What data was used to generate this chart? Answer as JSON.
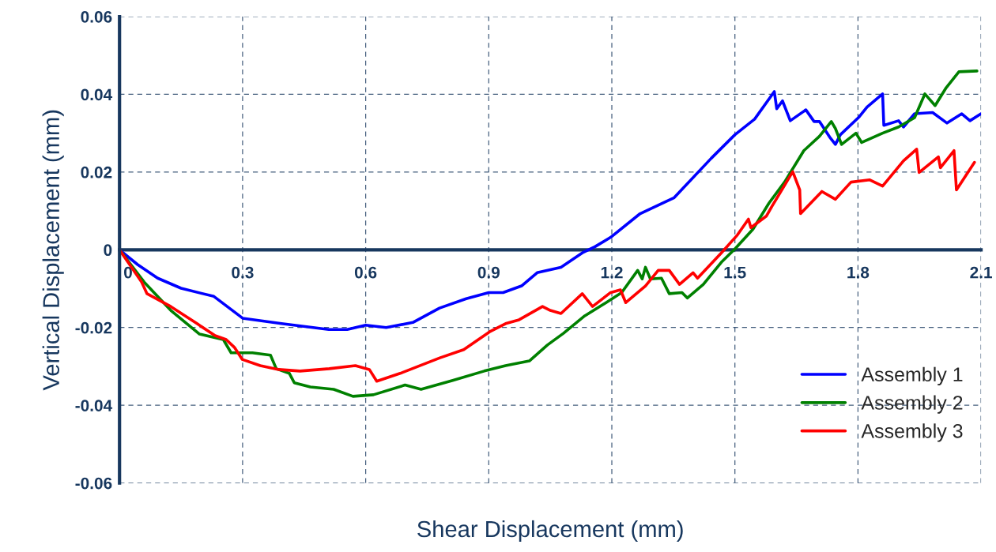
{
  "chart_data": {
    "type": "line",
    "xlabel": "Shear Displacement (mm)",
    "ylabel": "Vertical Displacement (mm)",
    "xlim": [
      0,
      2.1
    ],
    "ylim": [
      -0.06,
      0.06
    ],
    "xticks": [
      0,
      0.3,
      0.6,
      0.9,
      1.2,
      1.5,
      1.8,
      2.1
    ],
    "yticks": [
      {
        "value": -0.06,
        "label": "-0.06"
      },
      {
        "value": -0.04,
        "label": "-0.04"
      },
      {
        "value": -0.02,
        "label": "-0.02"
      },
      0,
      0.02,
      0.04,
      0.06
    ],
    "grid": true,
    "legend": "bottom right",
    "line_style": "solid",
    "marker": "none",
    "series": [
      {
        "name": "Assembly 1",
        "color": "#0000ff",
        "x": [
          0,
          0.044,
          0.093,
          0.15,
          0.23,
          0.3,
          0.395,
          0.51,
          0.555,
          0.6,
          0.65,
          0.715,
          0.78,
          0.845,
          0.9,
          0.935,
          0.98,
          1.018,
          1.076,
          1.128,
          1.159,
          1.197,
          1.269,
          1.352,
          1.442,
          1.5,
          1.548,
          1.596,
          1.602,
          1.616,
          1.635,
          1.673,
          1.693,
          1.706,
          1.731,
          1.745,
          1.757,
          1.803,
          1.822,
          1.86,
          1.863,
          1.899,
          1.911,
          1.938,
          1.982,
          2.017,
          2.053,
          2.073,
          2.1
        ],
        "values": [
          0,
          -0.0038,
          -0.0073,
          -0.0099,
          -0.012,
          -0.0176,
          -0.019,
          -0.0205,
          -0.0205,
          -0.0194,
          -0.02,
          -0.0187,
          -0.015,
          -0.0126,
          -0.011,
          -0.011,
          -0.0093,
          -0.0059,
          -0.0045,
          -0.0008,
          0.0008,
          0.0032,
          0.0093,
          0.0134,
          0.0235,
          0.0296,
          0.0336,
          0.0407,
          0.0363,
          0.0383,
          0.0332,
          0.036,
          0.033,
          0.033,
          0.029,
          0.0271,
          0.0296,
          0.0342,
          0.0367,
          0.0401,
          0.032,
          0.0332,
          0.0316,
          0.035,
          0.0353,
          0.0326,
          0.035,
          0.0332,
          0.035
        ]
      },
      {
        "name": "Assembly 2",
        "color": "#008000",
        "x": [
          0,
          0.06,
          0.125,
          0.195,
          0.253,
          0.272,
          0.324,
          0.368,
          0.382,
          0.414,
          0.426,
          0.465,
          0.522,
          0.569,
          0.619,
          0.696,
          0.735,
          0.812,
          0.889,
          0.941,
          0.999,
          1.043,
          1.082,
          1.134,
          1.186,
          1.224,
          1.263,
          1.274,
          1.282,
          1.294,
          1.321,
          1.34,
          1.371,
          1.384,
          1.423,
          1.467,
          1.5,
          1.544,
          1.583,
          1.621,
          1.668,
          1.706,
          1.735,
          1.745,
          1.76,
          1.795,
          1.809,
          1.86,
          1.899,
          1.938,
          1.963,
          1.988,
          2.015,
          2.046,
          2.09
        ],
        "values": [
          0,
          -0.0083,
          -0.0156,
          -0.0217,
          -0.0231,
          -0.0265,
          -0.0265,
          -0.0271,
          -0.0306,
          -0.0318,
          -0.0342,
          -0.0353,
          -0.0359,
          -0.0377,
          -0.0373,
          -0.0348,
          -0.0359,
          -0.0336,
          -0.0312,
          -0.0298,
          -0.0286,
          -0.0245,
          -0.0215,
          -0.017,
          -0.0136,
          -0.011,
          -0.0053,
          -0.0075,
          -0.0045,
          -0.0075,
          -0.0073,
          -0.0113,
          -0.011,
          -0.0124,
          -0.0089,
          -0.0032,
          0.0002,
          0.0053,
          0.012,
          0.0174,
          0.0255,
          0.0292,
          0.033,
          0.0312,
          0.0271,
          0.03,
          0.0276,
          0.03,
          0.0316,
          0.034,
          0.0401,
          0.0371,
          0.0417,
          0.0458,
          0.046
        ]
      },
      {
        "name": "Assembly 3",
        "color": "#ff0000",
        "x": [
          0,
          0.054,
          0.067,
          0.125,
          0.189,
          0.233,
          0.26,
          0.28,
          0.299,
          0.343,
          0.388,
          0.44,
          0.511,
          0.575,
          0.609,
          0.627,
          0.684,
          0.781,
          0.839,
          0.902,
          0.941,
          0.974,
          1.031,
          1.05,
          1.076,
          1.128,
          1.153,
          1.197,
          1.221,
          1.234,
          1.282,
          1.313,
          1.34,
          1.365,
          1.398,
          1.409,
          1.467,
          1.506,
          1.533,
          1.539,
          1.577,
          1.591,
          1.641,
          1.658,
          1.66,
          1.712,
          1.745,
          1.783,
          1.828,
          1.86,
          1.911,
          1.943,
          1.949,
          1.996,
          2.001,
          2.034,
          2.04,
          2.084
        ],
        "values": [
          0,
          -0.0083,
          -0.0113,
          -0.0146,
          -0.019,
          -0.0221,
          -0.0231,
          -0.0251,
          -0.0282,
          -0.0298,
          -0.0308,
          -0.0312,
          -0.0306,
          -0.0298,
          -0.0308,
          -0.0338,
          -0.0318,
          -0.0278,
          -0.0257,
          -0.0211,
          -0.019,
          -0.018,
          -0.0146,
          -0.0156,
          -0.0164,
          -0.0113,
          -0.0146,
          -0.011,
          -0.0103,
          -0.0136,
          -0.0093,
          -0.0053,
          -0.0053,
          -0.0089,
          -0.0059,
          -0.0073,
          -0.0008,
          0.0038,
          0.0079,
          0.0057,
          0.0087,
          0.0113,
          0.0201,
          0.0154,
          0.0093,
          0.015,
          0.013,
          0.0174,
          0.018,
          0.0164,
          0.0229,
          0.0259,
          0.0199,
          0.0239,
          0.0211,
          0.0255,
          0.0154,
          0.0225
        ]
      }
    ]
  }
}
